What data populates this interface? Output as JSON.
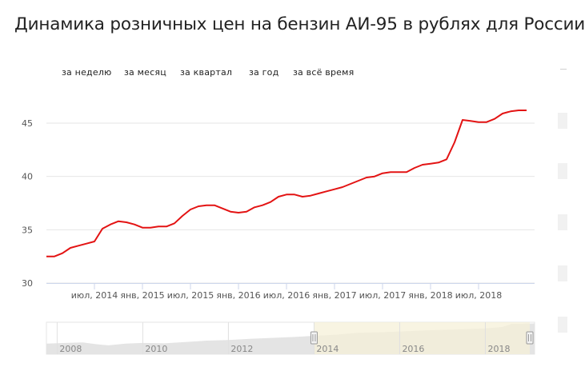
{
  "title": "Динамика розничных цен на бензин АИ-95 в рублях для России",
  "range_buttons": [
    "за неделю",
    "за месяц",
    "за квартал",
    "за год",
    "за всё время"
  ],
  "colors": {
    "line": "#e31313",
    "grid": "#e6e6e6",
    "navigator_fill": "#e4e4e4",
    "navigator_selected": "#f5f0d8"
  },
  "chart_data": {
    "type": "line",
    "title": "Динамика розничных цен на бензин АИ-95 в рублях для России",
    "xlabel": "",
    "ylabel": "",
    "ylim": [
      30,
      48
    ],
    "xlim": [
      "2014-01",
      "2019-02"
    ],
    "yticks": [
      30,
      35,
      40,
      45
    ],
    "xticks": [
      "июл, 2014",
      "янв, 2015",
      "июл, 2015",
      "янв, 2016",
      "июл, 2016",
      "янв, 2017",
      "июл, 2017",
      "янв, 2018",
      "июл, 2018"
    ],
    "grid": true,
    "series": [
      {
        "name": "",
        "x": [
          "2014-01",
          "2014-02",
          "2014-03",
          "2014-04",
          "2014-05",
          "2014-06",
          "2014-07",
          "2014-08",
          "2014-09",
          "2014-10",
          "2014-11",
          "2014-12",
          "2015-01",
          "2015-02",
          "2015-03",
          "2015-04",
          "2015-05",
          "2015-06",
          "2015-07",
          "2015-08",
          "2015-09",
          "2015-10",
          "2015-11",
          "2015-12",
          "2016-01",
          "2016-02",
          "2016-03",
          "2016-04",
          "2016-05",
          "2016-06",
          "2016-07",
          "2016-08",
          "2016-09",
          "2016-10",
          "2016-11",
          "2016-12",
          "2017-01",
          "2017-02",
          "2017-03",
          "2017-04",
          "2017-05",
          "2017-06",
          "2017-07",
          "2017-08",
          "2017-09",
          "2017-10",
          "2017-11",
          "2017-12",
          "2018-01",
          "2018-02",
          "2018-03",
          "2018-04",
          "2018-05",
          "2018-06",
          "2018-07",
          "2018-08",
          "2018-09",
          "2018-10",
          "2018-11",
          "2018-12",
          "2019-01"
        ],
        "y": [
          32.5,
          32.5,
          32.8,
          33.3,
          33.5,
          33.7,
          33.9,
          35.1,
          35.5,
          35.8,
          35.7,
          35.5,
          35.2,
          35.2,
          35.3,
          35.3,
          35.6,
          36.3,
          36.9,
          37.2,
          37.3,
          37.3,
          37.0,
          36.7,
          36.6,
          36.7,
          37.1,
          37.3,
          37.6,
          38.1,
          38.3,
          38.3,
          38.1,
          38.2,
          38.4,
          38.6,
          38.8,
          39.0,
          39.3,
          39.6,
          39.9,
          40.0,
          40.3,
          40.4,
          40.4,
          40.4,
          40.8,
          41.1,
          41.2,
          41.3,
          41.6,
          43.2,
          45.3,
          45.2,
          45.1,
          45.1,
          45.4,
          45.9,
          46.1,
          46.2,
          46.2
        ]
      }
    ],
    "navigator": {
      "xticks": [
        "2008",
        "2010",
        "2012",
        "2014",
        "2016",
        "2018"
      ],
      "selected_range": [
        "2014-01",
        "2019-02"
      ]
    }
  }
}
